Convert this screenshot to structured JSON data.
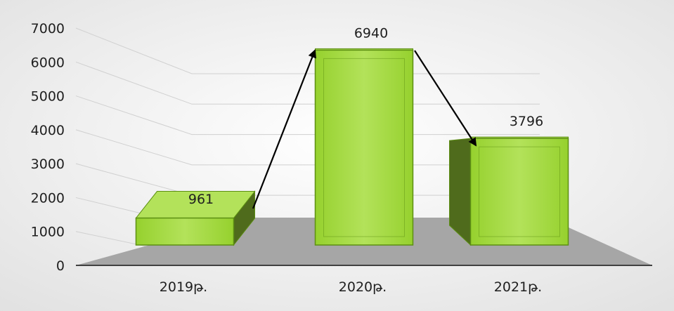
{
  "chart_data": {
    "type": "bar",
    "categories": [
      "2019թ.",
      "2020թ.",
      "2021թ."
    ],
    "values": [
      961,
      6940,
      3796
    ],
    "value_labels": [
      "961",
      "6940",
      "3796"
    ],
    "y_ticks": [
      "0",
      "1000",
      "2000",
      "3000",
      "4000",
      "5000",
      "6000",
      "7000"
    ],
    "ylim": [
      0,
      7000
    ],
    "title": "",
    "xlabel": "",
    "ylabel": "",
    "grid": true,
    "legend": "none",
    "style": "3d-column",
    "arrows": [
      {
        "from": "2019թ.",
        "to": "2020թ."
      },
      {
        "from": "2020թ.",
        "to": "2021թ."
      }
    ]
  },
  "colors": {
    "bar_front": "#96d12e",
    "bar_side": "#4f6b1c",
    "bar_top": "#b3e25a",
    "bar_edge": "#5c8f12",
    "floor": "#a6a6a6",
    "background_center": "#ffffff",
    "background_edge": "#e1e1e1",
    "arrow": "#000000"
  }
}
